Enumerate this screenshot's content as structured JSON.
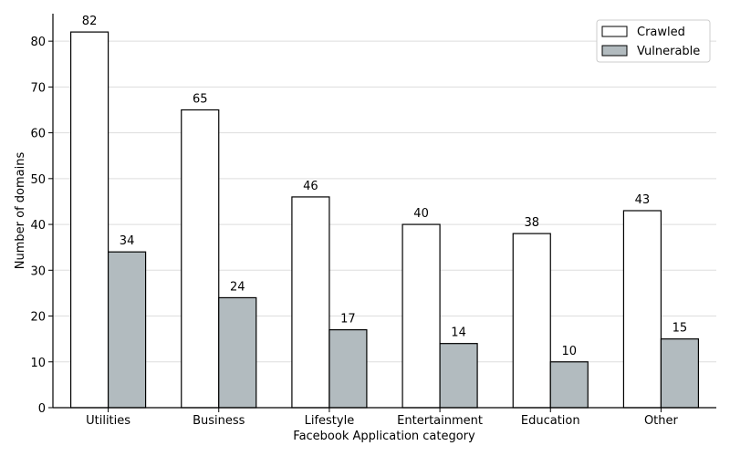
{
  "chart_data": {
    "type": "bar",
    "categories": [
      "Utilities",
      "Business",
      "Lifestyle",
      "Entertainment",
      "Education",
      "Other"
    ],
    "series": [
      {
        "name": "Crawled",
        "values": [
          82,
          65,
          46,
          40,
          38,
          43
        ],
        "color": "#ffffff"
      },
      {
        "name": "Vulnerable",
        "values": [
          34,
          24,
          17,
          14,
          10,
          15
        ],
        "color": "#b2bbbf"
      }
    ],
    "xlabel": "Facebook Application category",
    "ylabel": "Number of domains",
    "ylim": [
      0,
      86
    ],
    "yticks": [
      0,
      10,
      20,
      30,
      40,
      50,
      60,
      70,
      80
    ],
    "grid": "horizontal",
    "legend_position": "top-right",
    "colors": {
      "edge": "#000000",
      "grid": "#dddddd"
    }
  }
}
